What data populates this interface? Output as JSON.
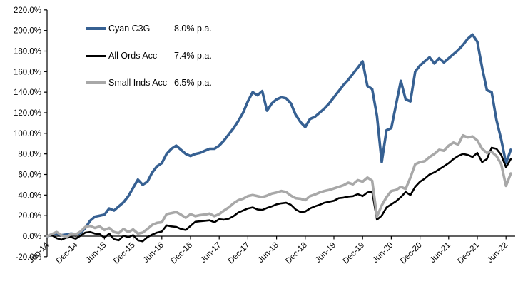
{
  "chart_data": {
    "type": "line",
    "title": "",
    "xlabel": "",
    "ylabel": "",
    "grid": false,
    "legend_position": "top-left-inside",
    "ylim": [
      -20,
      220
    ],
    "ytick_step": 20,
    "y_tick_labels": [
      "220.0%",
      "200.0%",
      "180.0%",
      "160.0%",
      "140.0%",
      "120.0%",
      "100.0%",
      "80.0%",
      "60.0%",
      "40.0%",
      "20.0%",
      "0.0%",
      "-20.0%"
    ],
    "x_tick_labels": [
      "Jun-14",
      "Dec-14",
      "Jun-15",
      "Dec-15",
      "Jun-16",
      "Dec-16",
      "Jun-17",
      "Dec-17",
      "Jun-18",
      "Dec-18",
      "Jun-19",
      "Dec-19",
      "Jun-20",
      "Dec-20",
      "Jun-21",
      "Dec-21",
      "Jun-22"
    ],
    "x_interval": "monthly",
    "x_start_label": "Jun-14",
    "axis_color": "#000000",
    "series": [
      {
        "name": "Cyan C3G",
        "rate_label": "8.0% p.a.",
        "color": "#366092",
        "stroke_width": 3.6,
        "values": [
          0,
          1.5,
          2,
          1,
          1.5,
          2.5,
          2,
          3,
          8,
          15,
          19,
          20,
          21,
          27,
          25,
          29,
          33,
          39,
          47,
          55,
          50,
          53,
          62,
          68,
          71,
          80,
          85,
          88,
          84,
          80,
          78,
          80,
          81,
          83,
          85,
          85,
          88,
          93,
          99,
          105,
          112,
          120,
          131,
          140,
          137,
          141,
          122,
          129,
          133,
          135,
          134,
          129,
          118,
          111,
          106,
          114,
          116,
          120,
          124,
          129,
          135,
          141,
          147,
          152,
          158,
          164,
          170,
          146,
          143,
          117,
          72,
          103,
          105,
          128,
          151,
          133,
          131,
          160,
          166,
          170,
          174,
          168,
          173,
          169,
          173,
          177,
          181,
          186,
          192,
          196,
          189,
          164,
          142,
          140,
          113,
          94,
          71,
          84
        ]
      },
      {
        "name": "All Ords Acc",
        "rate_label": "7.4% p.a.",
        "color": "#000000",
        "stroke_width": 2.6,
        "values": [
          0,
          1,
          -2,
          -3.5,
          -1.5,
          -1,
          -2.5,
          0.5,
          3.5,
          4,
          2.5,
          2,
          -1.5,
          2.5,
          -3,
          -4,
          0.5,
          -1,
          1,
          -4,
          -5,
          -1,
          1.5,
          3.5,
          4.5,
          10.5,
          9.5,
          9,
          7,
          6,
          10,
          14,
          14.5,
          15,
          15.5,
          13.5,
          16.5,
          16,
          17,
          19.5,
          23,
          25,
          27,
          28,
          26,
          25.5,
          27.5,
          29,
          31,
          32,
          32.5,
          30.5,
          26,
          23.5,
          24,
          27,
          29,
          30.5,
          32.5,
          33.5,
          34.5,
          37,
          37.5,
          38.5,
          39,
          41,
          39,
          42.5,
          43.5,
          16,
          20,
          28,
          31,
          34,
          38,
          43,
          40,
          48,
          53,
          56,
          60,
          62,
          65,
          68,
          71,
          75,
          78,
          80,
          79,
          77,
          81,
          72,
          75,
          86,
          85,
          79,
          67,
          75
        ]
      },
      {
        "name": "Small Inds Acc",
        "rate_label": "6.5% p.a.",
        "color": "#a8a8a8",
        "stroke_width": 3.6,
        "values": [
          0,
          2,
          4,
          1,
          -1,
          2,
          1.5,
          4.5,
          9,
          10,
          8,
          9.5,
          6,
          8,
          4,
          3,
          7,
          4,
          6.5,
          2.5,
          3.5,
          7,
          11,
          13,
          13.5,
          21.5,
          22.5,
          23.5,
          21,
          18,
          21.5,
          19.5,
          20.5,
          21,
          22,
          19.5,
          21.5,
          25,
          28,
          32,
          35,
          36.5,
          39,
          40,
          39,
          38,
          39.5,
          41.5,
          42.5,
          44,
          43,
          39.5,
          37,
          36.5,
          35,
          39,
          40.5,
          42.5,
          44,
          45,
          46.5,
          48,
          49.5,
          52,
          50.5,
          54.5,
          53,
          57,
          54,
          19,
          30,
          38,
          44,
          45,
          48,
          46,
          57,
          70,
          72,
          73,
          77,
          80,
          84,
          83,
          88,
          91,
          89,
          98,
          96,
          97,
          93,
          85,
          81,
          82,
          78,
          70,
          49,
          61
        ]
      }
    ]
  }
}
